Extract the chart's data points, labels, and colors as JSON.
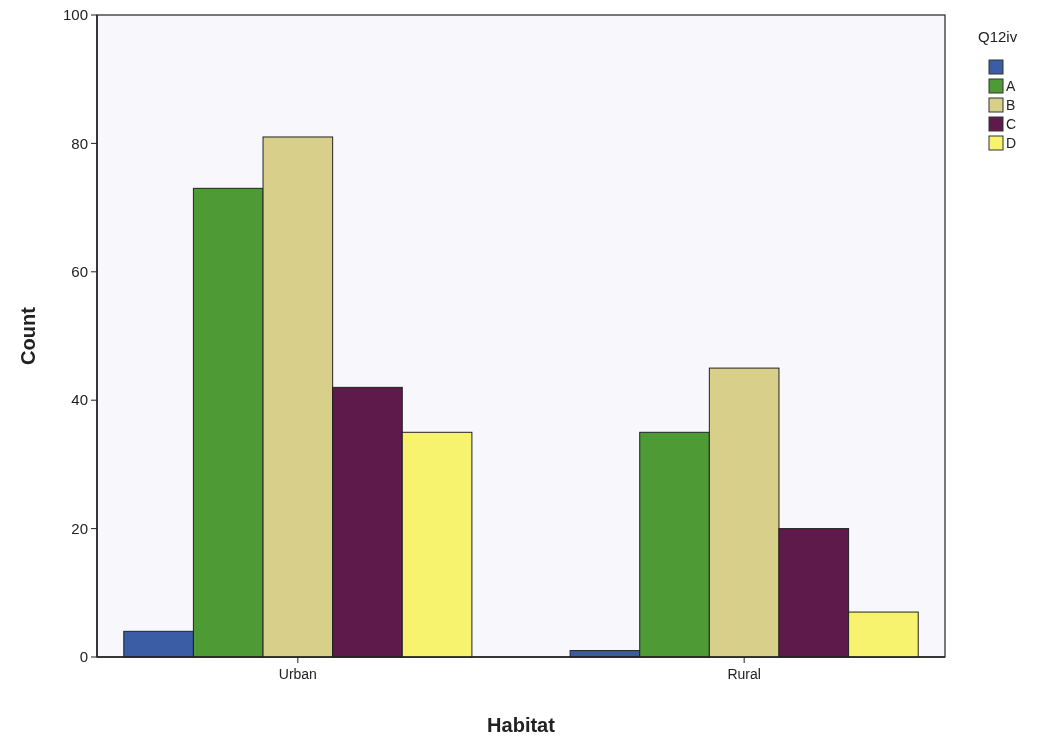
{
  "chart_data": {
    "type": "bar",
    "xlabel": "Habitat",
    "ylabel": "Count",
    "legend_title": "Q12iv",
    "categories": [
      "Urban",
      "Rural"
    ],
    "series": [
      {
        "color": "#3a5da6",
        "values": [
          4,
          1
        ]
      },
      {
        "name": "A",
        "color": "#4e9a35",
        "values": [
          73,
          35
        ]
      },
      {
        "name": "B",
        "color": "#d8d08a",
        "values": [
          81,
          45
        ]
      },
      {
        "name": "C",
        "color": "#5e1a4a",
        "values": [
          42,
          20
        ]
      },
      {
        "name": "D",
        "color": "#f7f36f",
        "values": [
          35,
          7
        ]
      }
    ],
    "ylim": [
      0,
      100
    ],
    "yticks": [
      0,
      20,
      40,
      60,
      80,
      100
    ],
    "grid": false,
    "legend": "top right"
  }
}
